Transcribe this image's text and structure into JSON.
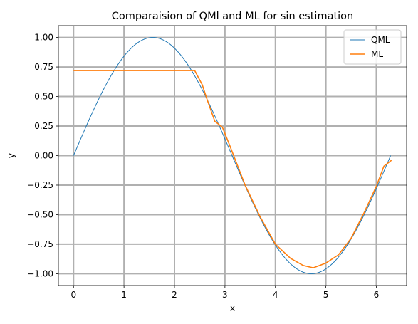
{
  "chart_data": {
    "type": "line",
    "title": "Comparaision of QMl and ML for sin estimation",
    "xlabel": "x",
    "ylabel": "y",
    "xlim": [
      -0.3,
      6.6
    ],
    "ylim": [
      -1.1,
      1.1
    ],
    "xticks": [
      0,
      1,
      2,
      3,
      4,
      5,
      6
    ],
    "xtick_labels": [
      "0",
      "1",
      "2",
      "3",
      "4",
      "5",
      "6"
    ],
    "yticks": [
      1.0,
      0.75,
      0.5,
      0.25,
      0.0,
      -0.25,
      -0.5,
      -0.75,
      -1.0
    ],
    "ytick_labels": [
      "1.00",
      "0.75",
      "0.50",
      "0.25",
      "0.00",
      "−0.25",
      "−0.50",
      "−0.75",
      "−1.00"
    ],
    "grid": true,
    "legend_position": "upper-right",
    "series": [
      {
        "name": "QML",
        "color": "#1f77b4",
        "function": "sin(x)",
        "x_range": [
          0,
          6.2832
        ]
      },
      {
        "name": "ML",
        "color": "#ff7f0e",
        "points": [
          [
            0.0,
            0.72
          ],
          [
            0.5,
            0.72
          ],
          [
            1.0,
            0.72
          ],
          [
            1.5,
            0.72
          ],
          [
            2.0,
            0.72
          ],
          [
            2.4,
            0.72
          ],
          [
            2.55,
            0.6
          ],
          [
            2.65,
            0.47
          ],
          [
            2.8,
            0.29
          ],
          [
            2.95,
            0.24
          ],
          [
            3.1,
            0.08
          ],
          [
            3.4,
            -0.25
          ],
          [
            3.7,
            -0.52
          ],
          [
            4.0,
            -0.75
          ],
          [
            4.3,
            -0.87
          ],
          [
            4.55,
            -0.93
          ],
          [
            4.75,
            -0.95
          ],
          [
            5.0,
            -0.91
          ],
          [
            5.25,
            -0.84
          ],
          [
            5.5,
            -0.7
          ],
          [
            5.75,
            -0.49
          ],
          [
            6.0,
            -0.26
          ],
          [
            6.15,
            -0.09
          ],
          [
            6.3,
            -0.04
          ]
        ]
      }
    ]
  }
}
